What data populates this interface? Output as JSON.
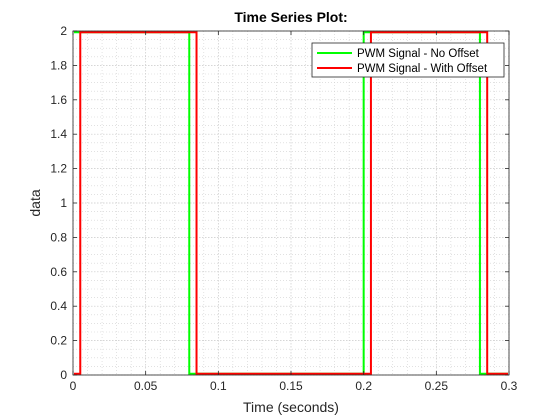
{
  "chart_data": {
    "type": "line",
    "title": "Time Series Plot:",
    "xlabel": "Time (seconds)",
    "ylabel": "data",
    "xlim": [
      0,
      0.3
    ],
    "ylim": [
      0,
      2
    ],
    "xticks": [
      0,
      0.05,
      0.1,
      0.15,
      0.2,
      0.25,
      0.3
    ],
    "xtick_labels": [
      "0",
      "0.05",
      "0.1",
      "0.15",
      "0.2",
      "0.25",
      "0.3"
    ],
    "yticks": [
      0,
      0.2,
      0.4,
      0.6,
      0.8,
      1,
      1.2,
      1.4,
      1.6,
      1.8,
      2
    ],
    "ytick_labels": [
      "0",
      "0.2",
      "0.4",
      "0.6",
      "0.8",
      "1",
      "1.2",
      "1.4",
      "1.6",
      "1.8",
      "2"
    ],
    "grid": true,
    "minor_grid": true,
    "legend_position": "top-right",
    "series": [
      {
        "name": "PWM Signal - No Offset",
        "color": "#00ff00",
        "x": [
          0,
          0.08,
          0.08,
          0.2,
          0.2,
          0.28,
          0.28,
          0.3
        ],
        "y": [
          2,
          2,
          0,
          0,
          2,
          2,
          0,
          0
        ]
      },
      {
        "name": "PWM Signal - With Offset",
        "color": "#ff0000",
        "x": [
          0,
          0.005,
          0.005,
          0.085,
          0.085,
          0.205,
          0.205,
          0.285,
          0.285,
          0.3
        ],
        "y": [
          0,
          0,
          2,
          2,
          0,
          0,
          2,
          2,
          0,
          0
        ]
      }
    ]
  }
}
